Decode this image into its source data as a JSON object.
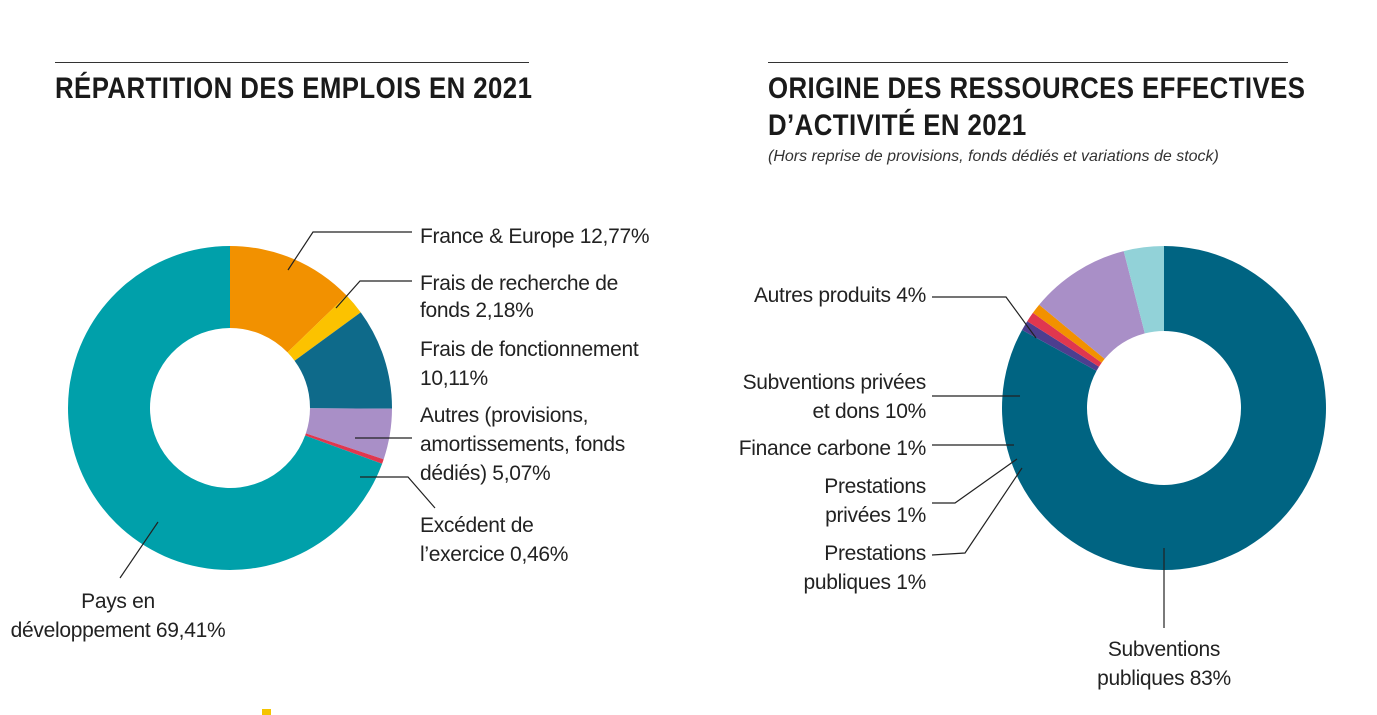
{
  "left_panel": {
    "title": "RÉPARTITION DES EMPLOIS EN 2021"
  },
  "right_panel": {
    "title_line1": "ORIGINE DES RESSOURCES EFFECTIVES",
    "title_line2": "D’ACTIVITÉ EN 2021",
    "subtitle": "(Hors reprise de provisions, fonds dédiés et variations de stock)"
  },
  "colors": {
    "accent": "#f5c400",
    "rule": "#333333",
    "leader": "#222222"
  },
  "chart_data": [
    {
      "type": "pie",
      "donut": true,
      "title": "RÉPARTITION DES EMPLOIS EN 2021",
      "start_angle_deg": 0,
      "direction": "clockwise",
      "slices": [
        {
          "key": "france",
          "value": 12.77,
          "color": "#f29100",
          "label_lines": [
            "France & Europe 12,77%"
          ]
        },
        {
          "key": "recherche",
          "value": 2.18,
          "color": "#fcc200",
          "label_lines": [
            "Frais de recherche de",
            "fonds 2,18%"
          ]
        },
        {
          "key": "fonctionnement",
          "value": 10.11,
          "color": "#0e6a8a",
          "label_lines": [
            "Frais de fonctionnement",
            "10,11%"
          ]
        },
        {
          "key": "autres",
          "value": 5.07,
          "color": "#a98fc7",
          "label_lines": [
            "Autres (provisions,",
            "amortissements, fonds",
            "dédiés) 5,07%"
          ]
        },
        {
          "key": "excedent",
          "value": 0.46,
          "color": "#e0374f",
          "label_lines": [
            "Excédent de",
            "l’exercice 0,46%"
          ]
        },
        {
          "key": "pays",
          "value": 69.41,
          "color": "#00a0aa",
          "label_lines": [
            "Pays en",
            "développement 69,41%"
          ]
        }
      ]
    },
    {
      "type": "pie",
      "donut": true,
      "title": "ORIGINE DES RESSOURCES EFFECTIVES D’ACTIVITÉ EN 2021",
      "start_angle_deg": 0,
      "direction": "clockwise",
      "slices": [
        {
          "key": "subv_publiques",
          "value": 83,
          "color": "#006482",
          "label_lines": [
            "Subventions",
            "publiques 83%"
          ]
        },
        {
          "key": "prest_publiques",
          "value": 1,
          "color": "#4d3e8f",
          "label_lines": [
            "Prestations",
            "publiques 1%"
          ]
        },
        {
          "key": "prest_privees",
          "value": 1,
          "color": "#e0374f",
          "label_lines": [
            "Prestations",
            "privées 1%"
          ]
        },
        {
          "key": "finance_carbone",
          "value": 1,
          "color": "#f29100",
          "label_lines": [
            "Finance carbone 1%"
          ]
        },
        {
          "key": "subv_privees",
          "value": 10,
          "color": "#a98fc7",
          "label_lines": [
            "Subventions privées",
            "et dons 10%"
          ]
        },
        {
          "key": "autres_produits",
          "value": 4,
          "color": "#92d2d8",
          "label_lines": [
            "Autres produits 4%"
          ]
        }
      ]
    }
  ]
}
